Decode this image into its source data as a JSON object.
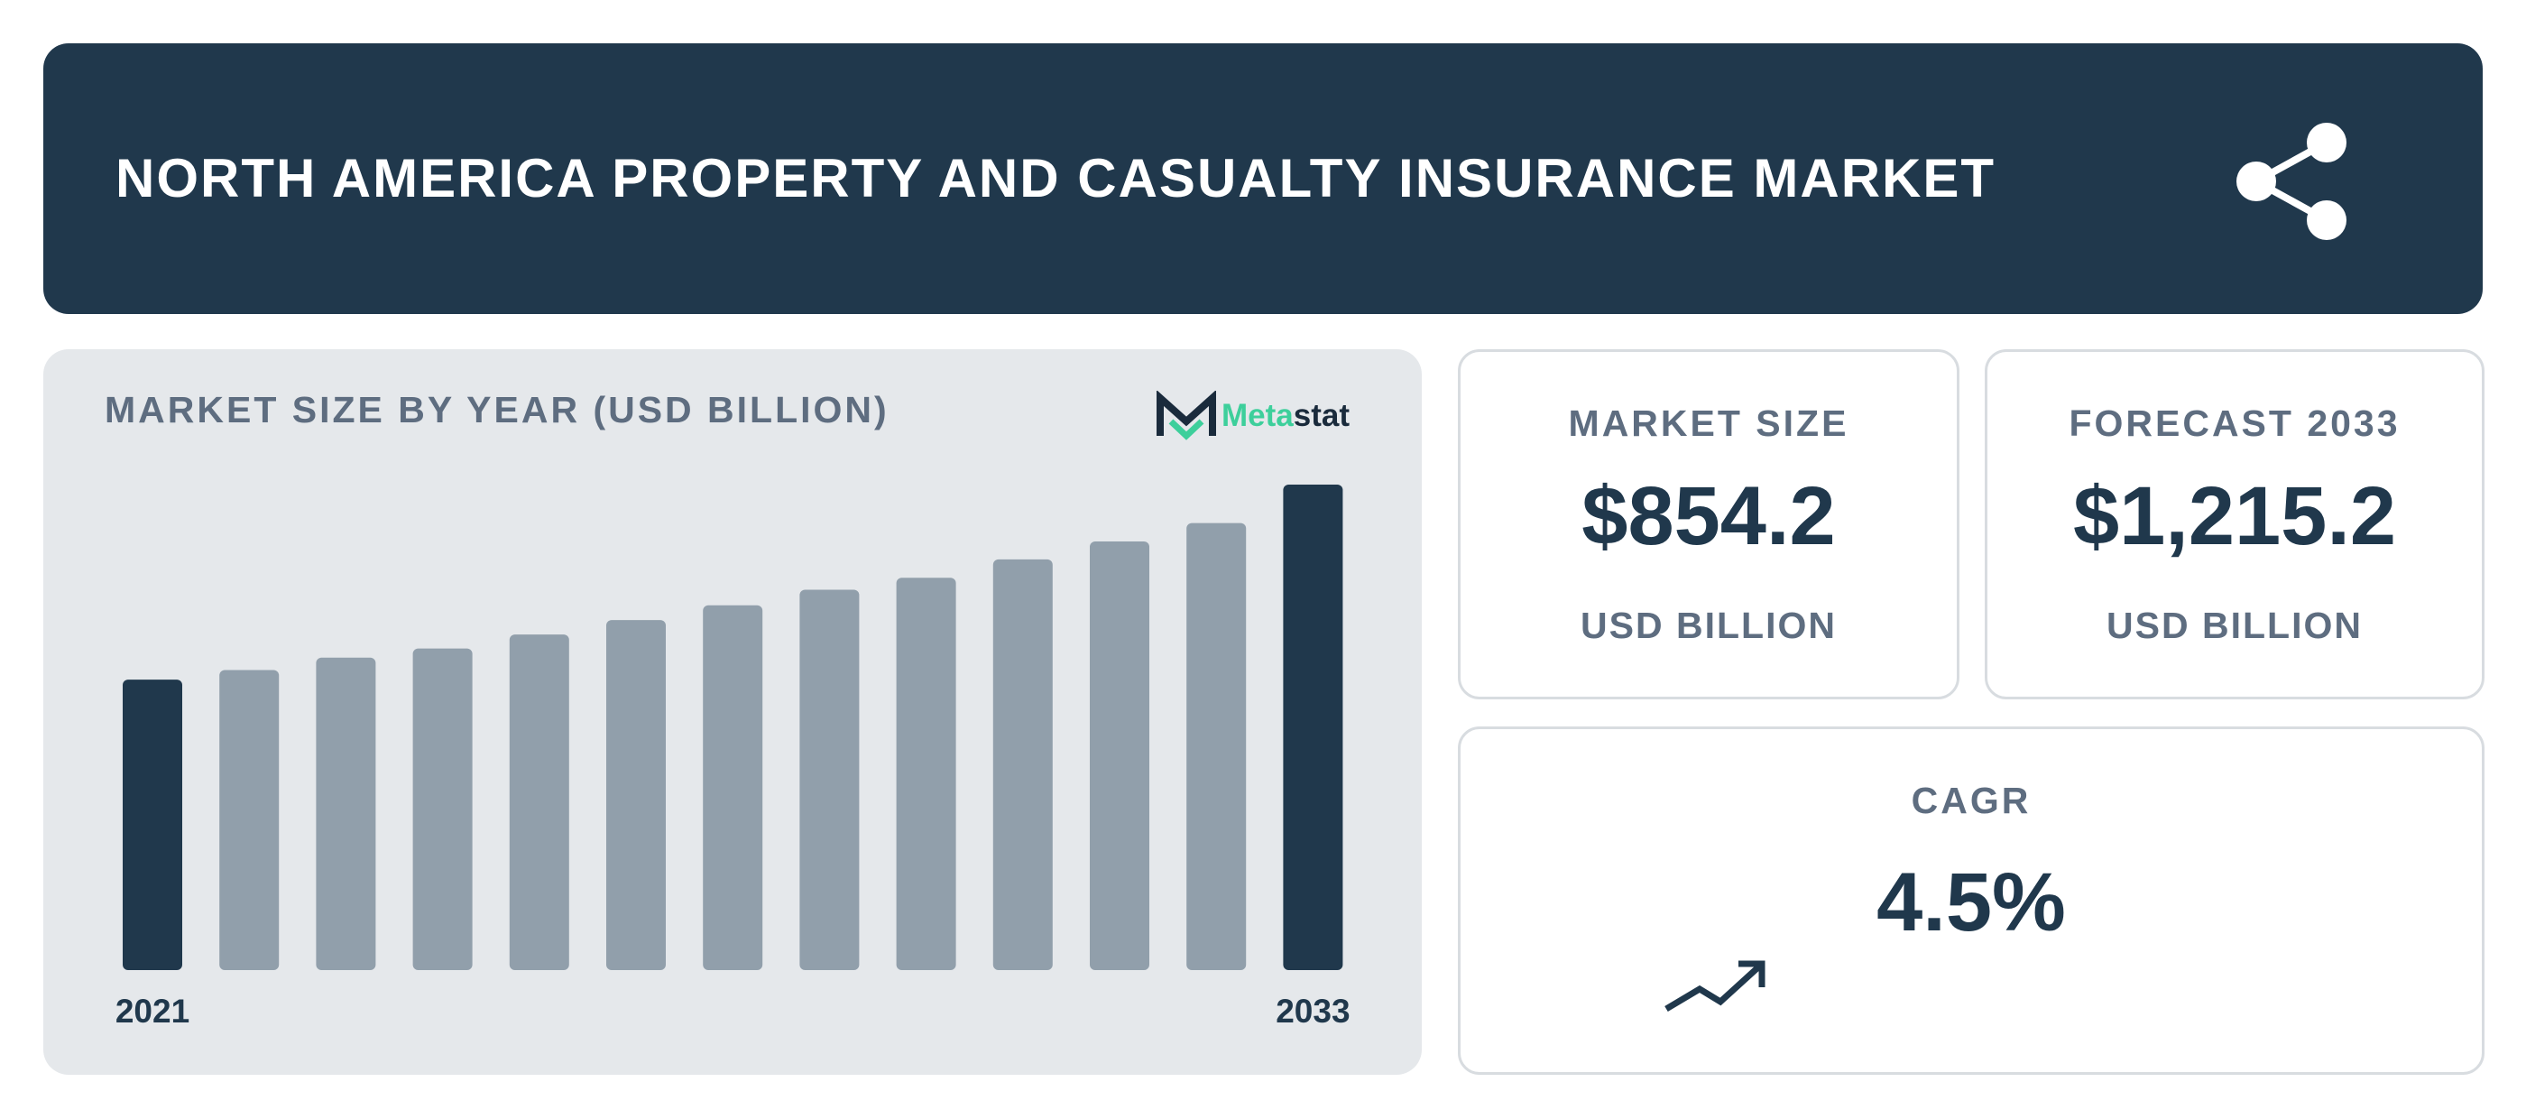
{
  "header": {
    "title": "NORTH AMERICA PROPERTY AND CASUALTY INSURANCE MARKET",
    "share_icon": "share-icon"
  },
  "chart_data": {
    "type": "bar",
    "title": "MARKET SIZE BY YEAR (USD BILLION)",
    "categories": [
      "2021",
      "2022",
      "2023",
      "2024",
      "2025",
      "2026",
      "2027",
      "2028",
      "2029",
      "2030",
      "2031",
      "2032",
      "2033"
    ],
    "values": [
      727.0,
      751.0,
      782.0,
      805.0,
      840.0,
      876.0,
      913.0,
      952.0,
      982.0,
      1028.0,
      1073.0,
      1119.0,
      1215.2
    ],
    "highlight_indices": [
      0,
      12
    ],
    "visible_tick_labels": [
      "2021",
      "2033"
    ],
    "ylim": [
      0,
      1215.2
    ],
    "grid": false,
    "legend": "none",
    "colors": {
      "highlight": "#20384c",
      "default": "#919fab"
    }
  },
  "logo": {
    "name_part1": "Meta",
    "name_part2": "stat"
  },
  "cards": {
    "market_size": {
      "label": "MARKET SIZE",
      "value": "$854.2",
      "unit": "USD BILLION"
    },
    "forecast": {
      "label": "FORECAST 2033",
      "value": "$1,215.2",
      "unit": "USD BILLION"
    },
    "cagr": {
      "label": "CAGR",
      "value": "4.5%",
      "icon": "trend-up-icon"
    }
  },
  "colors": {
    "header_bg": "#20384c",
    "panel_bg": "#e5e8eb",
    "accent": "#3dcf9b"
  }
}
